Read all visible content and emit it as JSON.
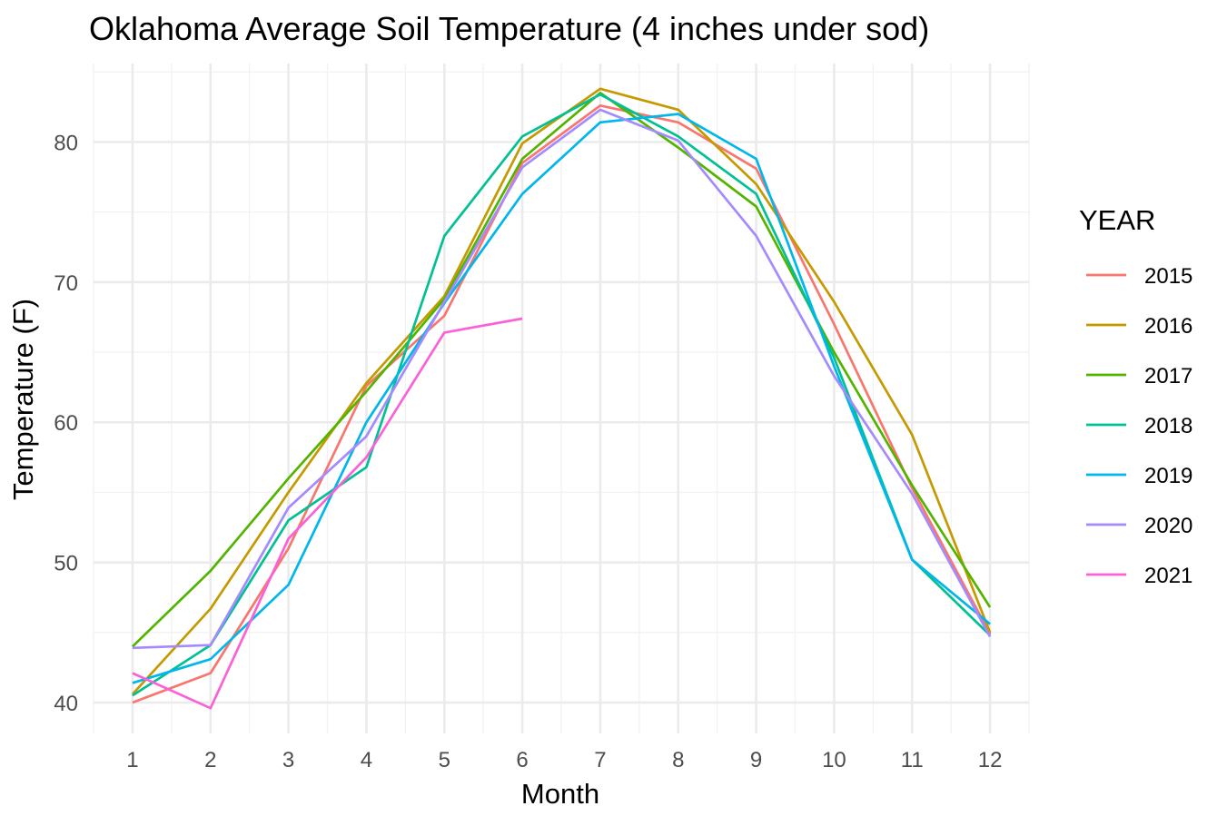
{
  "chart_data": {
    "type": "line",
    "title": "Oklahoma Average Soil Temperature (4 inches under sod)",
    "xlabel": "Month",
    "ylabel": "Temperature (F)",
    "x": [
      1,
      2,
      3,
      4,
      5,
      6,
      7,
      8,
      9,
      10,
      11,
      12
    ],
    "x_ticks": [
      "1",
      "2",
      "3",
      "4",
      "5",
      "6",
      "7",
      "8",
      "9",
      "10",
      "11",
      "12"
    ],
    "y_ticks": [
      "40",
      "50",
      "60",
      "70",
      "80"
    ],
    "y_tick_values": [
      40,
      50,
      60,
      70,
      80
    ],
    "xlim": [
      0.5,
      12.5
    ],
    "ylim": [
      37.8,
      85.6
    ],
    "grid": true,
    "legend": {
      "title": "YEAR",
      "position": "right"
    },
    "series": [
      {
        "name": "2015",
        "color": "#F8766D",
        "values": [
          40.0,
          42.1,
          51.0,
          62.6,
          67.6,
          78.5,
          82.6,
          81.4,
          78.1,
          67.0,
          55.3,
          44.9
        ]
      },
      {
        "name": "2016",
        "color": "#C49A00",
        "values": [
          40.6,
          46.7,
          55.0,
          62.8,
          69.0,
          79.9,
          83.8,
          82.3,
          77.0,
          68.6,
          59.1,
          45.0
        ]
      },
      {
        "name": "2017",
        "color": "#53B400",
        "values": [
          44.0,
          49.4,
          56.0,
          62.2,
          68.8,
          78.8,
          83.5,
          79.6,
          75.4,
          65.0,
          55.5,
          46.8
        ]
      },
      {
        "name": "2018",
        "color": "#00C094",
        "values": [
          40.5,
          44.1,
          53.0,
          56.8,
          73.3,
          80.4,
          83.4,
          80.4,
          76.3,
          64.6,
          50.2,
          44.8
        ]
      },
      {
        "name": "2019",
        "color": "#00B6EB",
        "values": [
          41.4,
          43.1,
          48.4,
          60.0,
          68.5,
          76.3,
          81.4,
          82.0,
          78.8,
          64.0,
          50.2,
          45.6
        ]
      },
      {
        "name": "2020",
        "color": "#A58AFF",
        "values": [
          43.9,
          44.1,
          53.9,
          59.0,
          68.6,
          78.2,
          82.3,
          80.1,
          73.3,
          63.3,
          54.9,
          44.7
        ]
      },
      {
        "name": "2021",
        "color": "#FB61D7",
        "values": [
          42.1,
          39.6,
          51.7,
          57.5,
          66.4,
          67.4,
          null,
          null,
          null,
          null,
          null,
          null
        ]
      }
    ]
  }
}
